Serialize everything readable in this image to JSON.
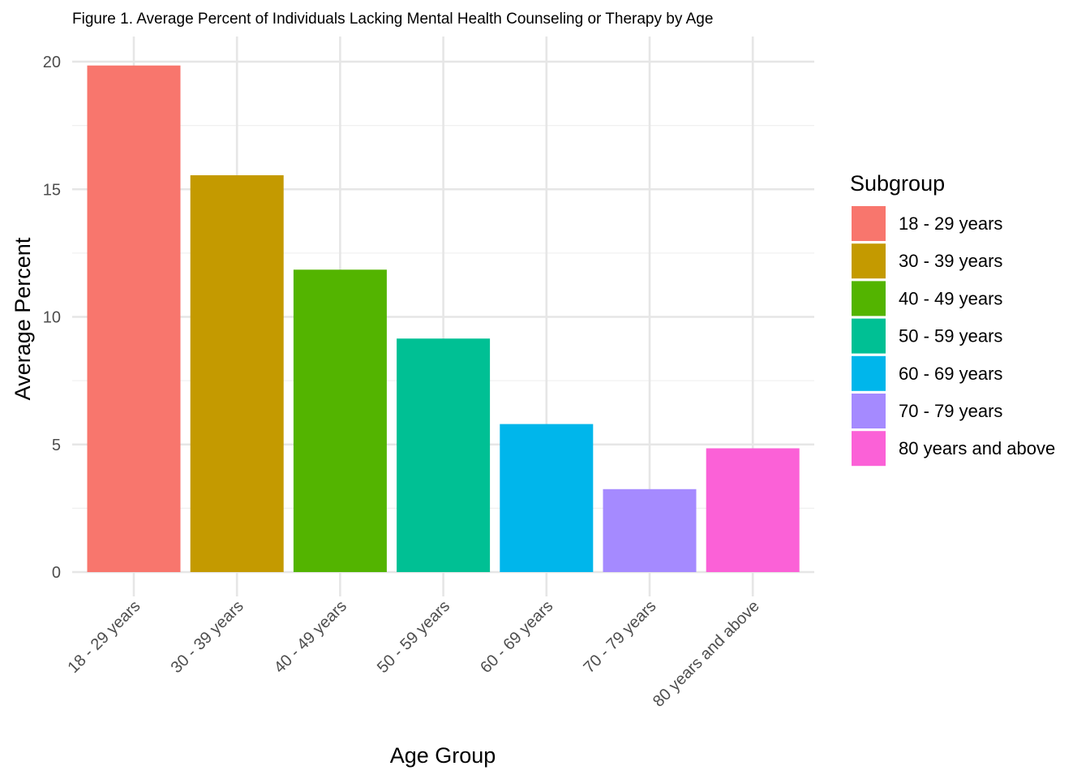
{
  "chart_data": {
    "type": "bar",
    "title": "Figure 1. Average Percent of Individuals Lacking Mental Health Counseling or Therapy by Age",
    "xlabel": "Age Group",
    "ylabel": "Average Percent",
    "categories": [
      "18 - 29 years",
      "30 - 39 years",
      "40 - 49 years",
      "50 - 59 years",
      "60 - 69 years",
      "70 - 79 years",
      "80 years and above"
    ],
    "values": [
      19.85,
      15.55,
      11.85,
      9.15,
      5.8,
      3.25,
      4.85
    ],
    "colors": [
      "#F8766D",
      "#C49A00",
      "#53B400",
      "#00C094",
      "#00B6EB",
      "#A58AFF",
      "#FB61D7"
    ],
    "ylim": [
      0,
      20.5
    ],
    "yticks": [
      0,
      5,
      10,
      15,
      20
    ],
    "grid": true,
    "legend": {
      "title": "Subgroup",
      "position": "right",
      "entries": [
        "18 - 29 years",
        "30 - 39 years",
        "40 - 49 years",
        "50 - 59 years",
        "60 - 69 years",
        "70 - 79 years",
        "80 years and above"
      ]
    }
  }
}
